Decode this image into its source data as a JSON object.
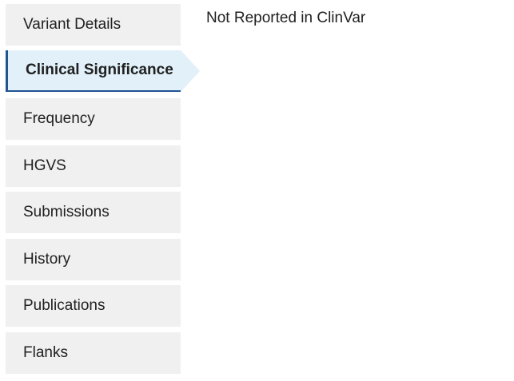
{
  "sidebar": {
    "items": [
      {
        "label": "Variant Details"
      },
      {
        "label": "Clinical Significance"
      },
      {
        "label": "Frequency"
      },
      {
        "label": "HGVS"
      },
      {
        "label": "Submissions"
      },
      {
        "label": "History"
      },
      {
        "label": "Publications"
      },
      {
        "label": "Flanks"
      }
    ],
    "active_item": "Clinical Significance"
  },
  "main": {
    "message": "Not Reported in ClinVar"
  },
  "colors": {
    "tab_background": "#f0f0f0",
    "active_tab_background": "#e1f0f9",
    "active_tab_border": "#205493"
  }
}
